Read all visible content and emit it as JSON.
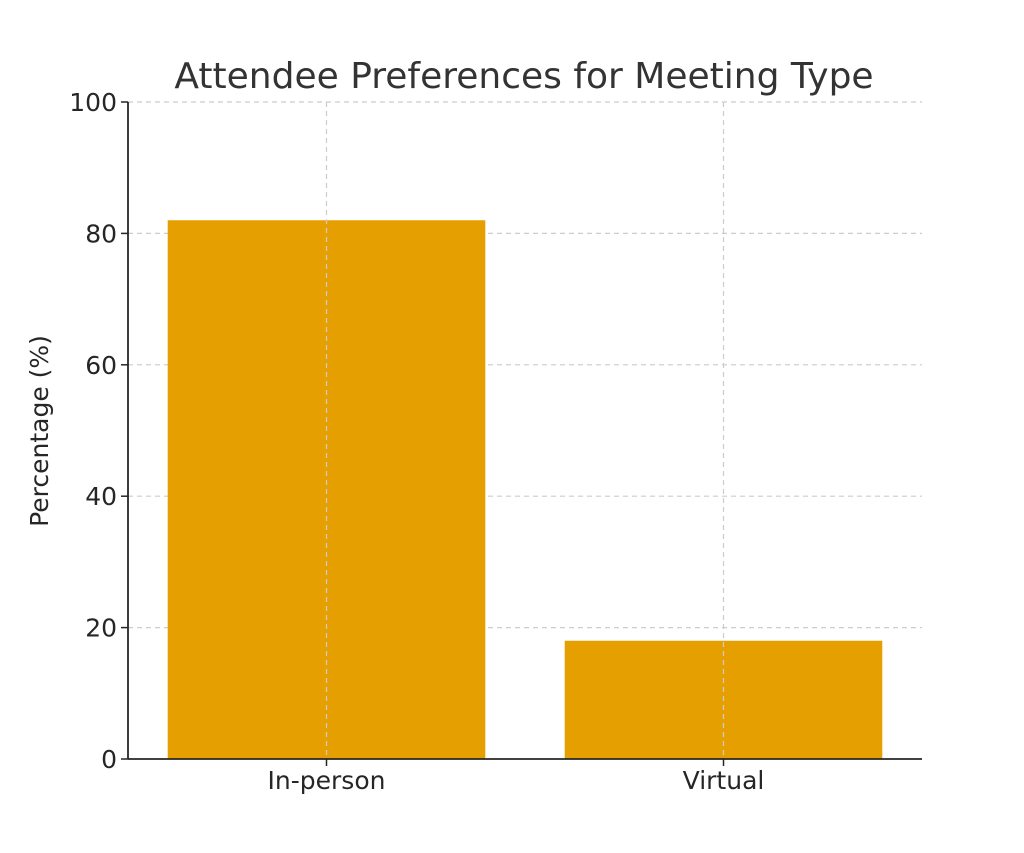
{
  "chart_data": {
    "type": "bar",
    "title": "Attendee Preferences for Meeting Type",
    "xlabel": "",
    "ylabel": "Percentage (%)",
    "categories": [
      "In-person",
      "Virtual"
    ],
    "values": [
      82,
      18
    ],
    "ylim": [
      0,
      100
    ],
    "yticks": [
      "0",
      "20",
      "40",
      "60",
      "80",
      "100"
    ],
    "ytick_values": [
      0,
      20,
      40,
      60,
      80,
      100
    ],
    "grid": true,
    "legend": "none",
    "colors": {
      "bar": "#E69F00",
      "grid": "#cccccc",
      "axis": "#262626"
    }
  }
}
